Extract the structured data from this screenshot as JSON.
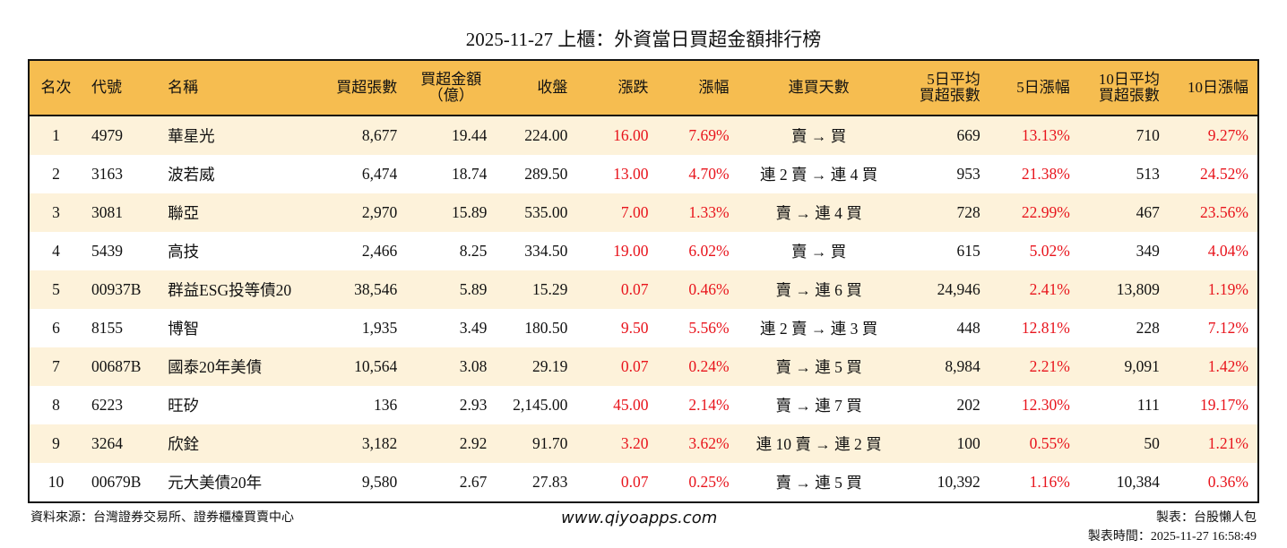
{
  "title": "2025-11-27 上櫃：外資當日買超金額排行榜",
  "headers": [
    "名次",
    "代號",
    "名稱",
    "買超張數",
    "買超金額\n（億）",
    "收盤",
    "漲跌",
    "漲幅",
    "連買天數",
    "5日平均\n買超張數",
    "5日漲幅",
    "10日平均\n買超張數",
    "10日漲幅"
  ],
  "colors": {
    "header_bg": "#f6bd50",
    "row_alt_bg": "#fdf2da",
    "up": "#e8141c"
  },
  "rows": [
    [
      "1",
      "4979",
      "華星光",
      "8,677",
      "19.44",
      "224.00",
      "16.00",
      "7.69%",
      "賣 → 買",
      "669",
      "13.13%",
      "710",
      "9.27%"
    ],
    [
      "2",
      "3163",
      "波若威",
      "6,474",
      "18.74",
      "289.50",
      "13.00",
      "4.70%",
      "連 2 賣 → 連 4 買",
      "953",
      "21.38%",
      "513",
      "24.52%"
    ],
    [
      "3",
      "3081",
      "聯亞",
      "2,970",
      "15.89",
      "535.00",
      "7.00",
      "1.33%",
      "賣 → 連 4 買",
      "728",
      "22.99%",
      "467",
      "23.56%"
    ],
    [
      "4",
      "5439",
      "高技",
      "2,466",
      "8.25",
      "334.50",
      "19.00",
      "6.02%",
      "賣 → 買",
      "615",
      "5.02%",
      "349",
      "4.04%"
    ],
    [
      "5",
      "00937B",
      "群益ESG投等債20",
      "38,546",
      "5.89",
      "15.29",
      "0.07",
      "0.46%",
      "賣 → 連 6 買",
      "24,946",
      "2.41%",
      "13,809",
      "1.19%"
    ],
    [
      "6",
      "8155",
      "博智",
      "1,935",
      "3.49",
      "180.50",
      "9.50",
      "5.56%",
      "連 2 賣 → 連 3 買",
      "448",
      "12.81%",
      "228",
      "7.12%"
    ],
    [
      "7",
      "00687B",
      "國泰20年美債",
      "10,564",
      "3.08",
      "29.19",
      "0.07",
      "0.24%",
      "賣 → 連 5 買",
      "8,984",
      "2.21%",
      "9,091",
      "1.42%"
    ],
    [
      "8",
      "6223",
      "旺矽",
      "136",
      "2.93",
      "2,145.00",
      "45.00",
      "2.14%",
      "賣 → 連 7 買",
      "202",
      "12.30%",
      "111",
      "19.17%"
    ],
    [
      "9",
      "3264",
      "欣銓",
      "3,182",
      "2.92",
      "91.70",
      "3.20",
      "3.62%",
      "連 10 賣 → 連 2 買",
      "100",
      "0.55%",
      "50",
      "1.21%"
    ],
    [
      "10",
      "00679B",
      "元大美債20年",
      "9,580",
      "2.67",
      "27.83",
      "0.07",
      "0.25%",
      "賣 → 連 5 買",
      "10,392",
      "1.16%",
      "10,384",
      "0.36%"
    ]
  ],
  "footer": {
    "source": "資料來源：台灣證券交易所、證券櫃檯買賣中心",
    "website": "www.qiyoapps.com",
    "maker": "製表：台股懶人包",
    "time": "製表時間：2025-11-27 16:58:49"
  }
}
